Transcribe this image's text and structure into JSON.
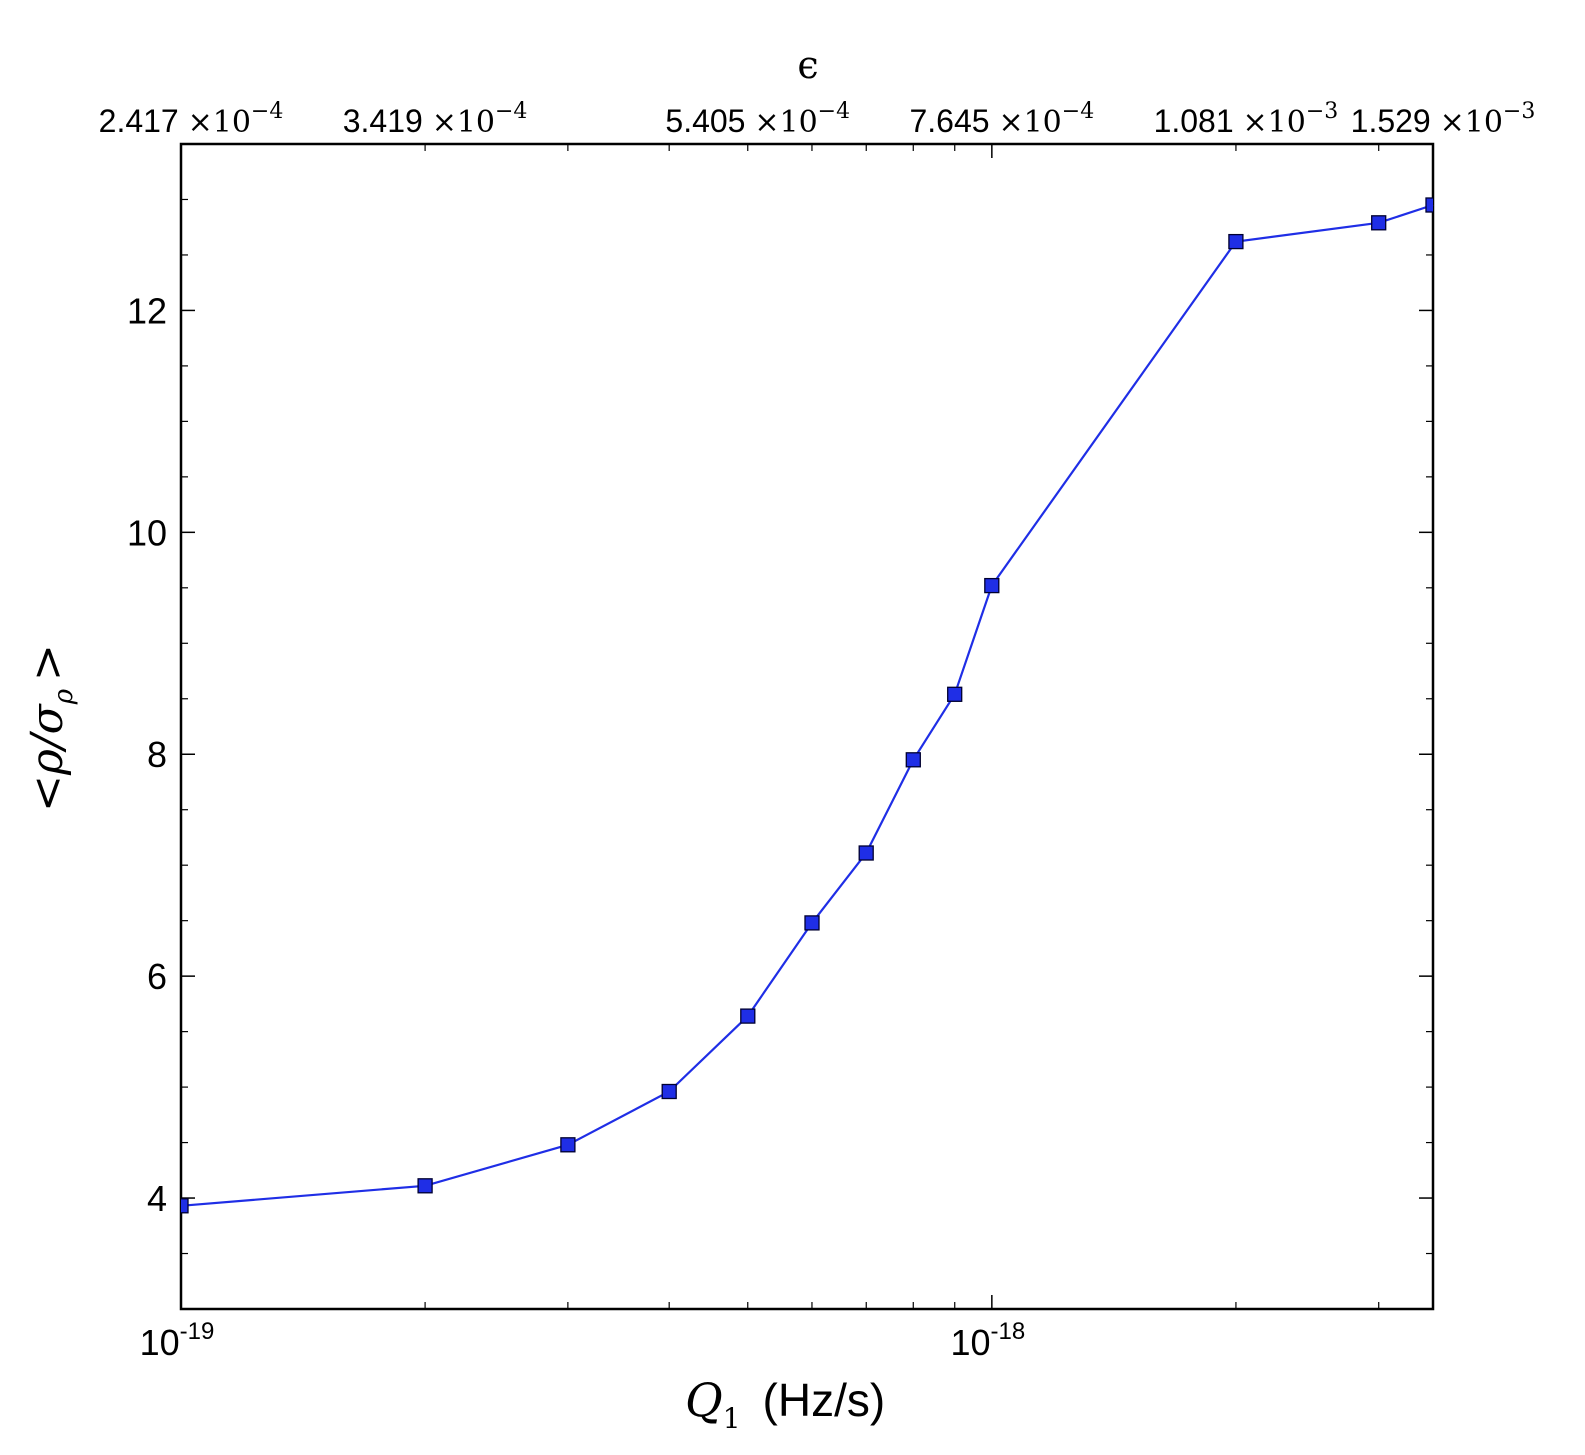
{
  "chart_data": {
    "type": "line",
    "xscale": "log",
    "xlim": [
      1e-19,
      3.5e-18
    ],
    "ylim": [
      3.0,
      13.5
    ],
    "xlabel": "Q_1 (Hz/s)",
    "xlabel_main": "Q",
    "xlabel_sub": "1",
    "xlabel_unit": "(Hz/s)",
    "ylabel": "<ρ/σ_ρ>",
    "ylabel_pre": "<ρ/σ",
    "ylabel_sub": "ρ",
    "ylabel_post": ">",
    "top_axis_label": "ϵ",
    "grid": false,
    "series": [
      {
        "color": "#1f2ee6",
        "marker": "square",
        "x": [
          1e-19,
          2e-19,
          3e-19,
          4e-19,
          5e-19,
          6e-19,
          7e-19,
          8e-19,
          9e-19,
          1e-18,
          2e-18,
          3e-18,
          3.5e-18
        ],
        "y": [
          3.93,
          4.11,
          4.48,
          4.96,
          5.64,
          6.48,
          7.11,
          7.95,
          8.54,
          9.52,
          12.62,
          12.79,
          12.95
        ]
      }
    ],
    "x_major_ticks": [
      {
        "value": 1e-19,
        "base": "10",
        "exp": "-19"
      },
      {
        "value": 1e-18,
        "base": "10",
        "exp": "-18"
      }
    ],
    "x_minor_ticks": [
      2e-19,
      3e-19,
      4e-19,
      5e-19,
      6e-19,
      7e-19,
      8e-19,
      9e-19,
      2e-18,
      3e-18
    ],
    "y_major_ticks": [
      {
        "value": 4,
        "label": "4"
      },
      {
        "value": 6,
        "label": "6"
      },
      {
        "value": 8,
        "label": "8"
      },
      {
        "value": 10,
        "label": "10"
      },
      {
        "value": 12,
        "label": "12"
      }
    ],
    "y_minor_ticks": [
      3.5,
      4.5,
      5,
      5.5,
      6.5,
      7,
      7.5,
      8.5,
      9,
      9.5,
      10.5,
      11,
      11.5,
      12.5,
      13
    ],
    "top_ticks": [
      {
        "q": 1e-19,
        "mantissa": "2.417",
        "times": "×10",
        "exp": "−4"
      },
      {
        "q": 2e-19,
        "mantissa": "3.419",
        "times": "×10",
        "exp": "−4"
      },
      {
        "q": 5e-19,
        "mantissa": "5.405",
        "times": "×10",
        "exp": "−4"
      },
      {
        "q": 1e-18,
        "mantissa": "7.645",
        "times": "×10",
        "exp": "−4"
      },
      {
        "q": 2e-18,
        "mantissa": "1.081",
        "times": "×10",
        "exp": "−3"
      },
      {
        "q": 3.5e-18,
        "mantissa": "1.529",
        "times": "×10",
        "exp": "−3"
      }
    ]
  }
}
